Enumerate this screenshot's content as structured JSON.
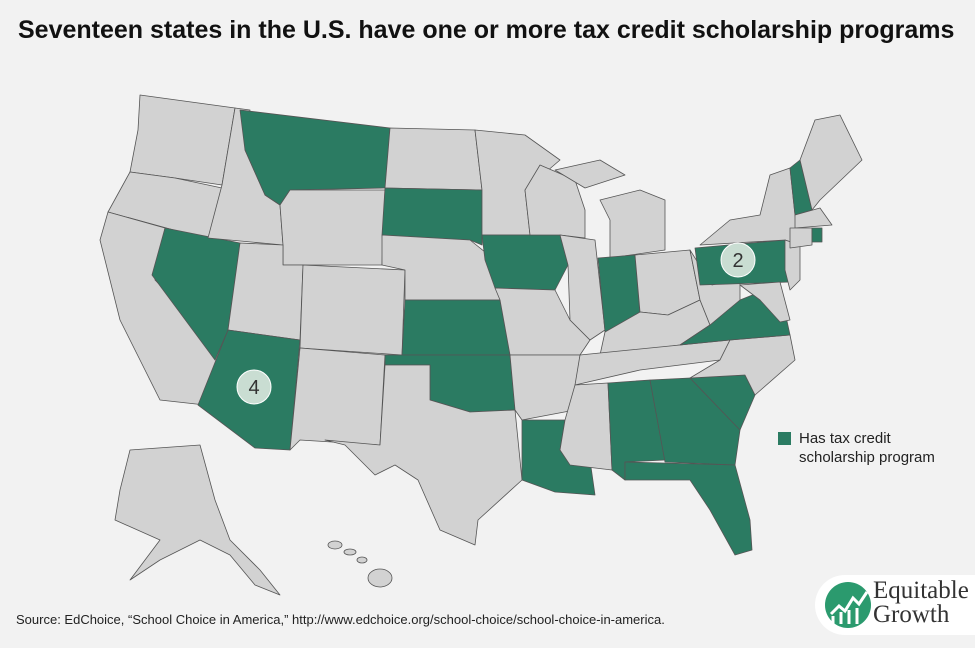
{
  "header": {
    "title": "Seventeen states in the U.S. have one or more tax credit scholarship programs"
  },
  "map": {
    "program_color": "#2b7b62",
    "other_color": "#d2d2d2",
    "callouts": [
      {
        "label": "2"
      },
      {
        "label": "4"
      }
    ]
  },
  "legend": {
    "label": "Has tax credit scholarship program"
  },
  "footer": {
    "source": "Source: EdChoice, “School Choice in America,” http://www.edchoice.org/school-choice/school-choice-in-america."
  },
  "logo": {
    "line1": "Equitable",
    "line2": "Growth"
  }
}
